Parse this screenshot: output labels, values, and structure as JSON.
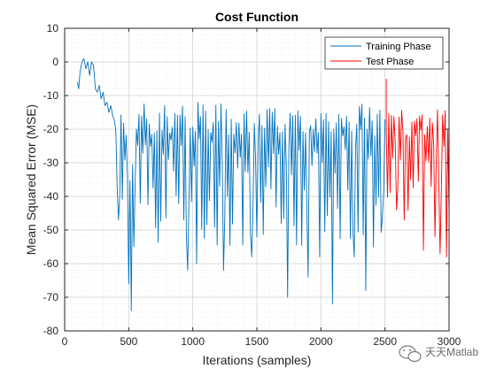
{
  "chart_data": {
    "type": "line",
    "title": "Cost Function",
    "xlabel": "Iterations (samples)",
    "ylabel": "Mean Squared Error (MSE)",
    "xlim": [
      0,
      3000
    ],
    "ylim": [
      -80,
      10
    ],
    "x_ticks": [
      0,
      500,
      1000,
      1500,
      2000,
      2500,
      3000
    ],
    "y_ticks": [
      10,
      0,
      -10,
      -20,
      -30,
      -40,
      -50,
      -60,
      -70,
      -80
    ],
    "grid": "minor dotted",
    "legend_position": "top-right",
    "series": [
      {
        "name": "Training Phase",
        "color": "#0072BD",
        "x_range": [
          100,
          2500
        ],
        "initial_points": [
          [
            100,
            -6
          ],
          [
            110,
            -8
          ],
          [
            120,
            -3
          ],
          [
            135,
            0
          ],
          [
            150,
            1
          ],
          [
            165,
            -2
          ],
          [
            180,
            0
          ],
          [
            195,
            -4
          ],
          [
            210,
            0
          ],
          [
            225,
            -1
          ],
          [
            240,
            -8
          ],
          [
            255,
            -9
          ],
          [
            270,
            -7
          ],
          [
            285,
            -11
          ],
          [
            300,
            -9
          ],
          [
            315,
            -13
          ],
          [
            330,
            -12
          ],
          [
            345,
            -15
          ],
          [
            360,
            -13
          ],
          [
            375,
            -16
          ],
          [
            385,
            -17
          ],
          [
            395,
            -19
          ]
        ],
        "noise_start": 400,
        "upper_level": -12,
        "lower_band": [
          -20,
          -55
        ],
        "notable_dips": [
          [
            390,
            -48
          ],
          [
            420,
            -47
          ],
          [
            500,
            -66
          ],
          [
            520,
            -74
          ],
          [
            540,
            -55
          ],
          [
            960,
            -62
          ],
          [
            1030,
            -60
          ],
          [
            1240,
            -62
          ],
          [
            1460,
            -58
          ],
          [
            1500,
            -52
          ],
          [
            1740,
            -70
          ],
          [
            1900,
            -64
          ],
          [
            1990,
            -58
          ],
          [
            2090,
            -72
          ],
          [
            2260,
            -58
          ],
          [
            2350,
            -68
          ],
          [
            2410,
            -55
          ],
          [
            2480,
            -46
          ]
        ]
      },
      {
        "name": "Test Phase",
        "color": "#FF0000",
        "x_range": [
          2500,
          3000
        ],
        "start_spike": [
          2510,
          -5
        ],
        "upper_level": -14,
        "lower_band": [
          -20,
          -45
        ],
        "notable_dips": [
          [
            2590,
            -44
          ],
          [
            2650,
            -47
          ],
          [
            2800,
            -56
          ],
          [
            2890,
            -52
          ],
          [
            2930,
            -57
          ],
          [
            2980,
            -58
          ],
          [
            3000,
            -45
          ]
        ]
      }
    ]
  },
  "watermark": {
    "text": "天天Matlab",
    "icon": "wechat-icon"
  }
}
